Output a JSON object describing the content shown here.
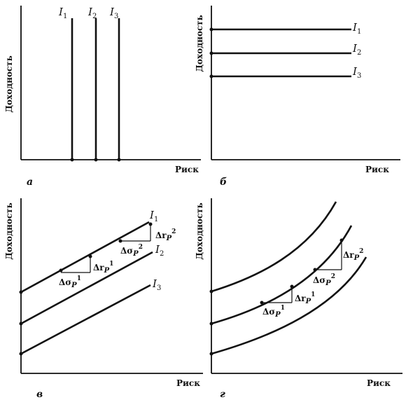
{
  "panels": [
    {
      "label": "а",
      "ylabel": "Доходность",
      "xlabel": "Риск",
      "curves": [
        {
          "name": "I",
          "sub": "1"
        },
        {
          "name": "I",
          "sub": "2"
        },
        {
          "name": "I",
          "sub": "3"
        }
      ]
    },
    {
      "label": "б",
      "ylabel": "Доходность",
      "xlabel": "Риск",
      "curves": [
        {
          "name": "I",
          "sub": "1"
        },
        {
          "name": "I",
          "sub": "2"
        },
        {
          "name": "I",
          "sub": "3"
        }
      ]
    },
    {
      "label": "в",
      "ylabel": "Доходность",
      "xlabel": "Риск",
      "curves": [
        {
          "name": "I",
          "sub": "1"
        },
        {
          "name": "I",
          "sub": "2"
        },
        {
          "name": "I",
          "sub": "3"
        }
      ],
      "deltas": [
        {
          "dsigma": "Δσ",
          "dsigma_sub": "P",
          "dsigma_sup": "1",
          "dr": "Δr",
          "dr_sub": "P",
          "dr_sup": "1"
        },
        {
          "dsigma": "Δσ",
          "dsigma_sub": "P",
          "dsigma_sup": "2",
          "dr": "Δr",
          "dr_sub": "P",
          "dr_sup": "2"
        }
      ]
    },
    {
      "label": "г",
      "ylabel": "Доходность",
      "xlabel": "Риск",
      "deltas": [
        {
          "dsigma": "Δσ",
          "dsigma_sub": "P",
          "dsigma_sup": "1",
          "dr": "Δr",
          "dr_sub": "P",
          "dr_sup": "1"
        },
        {
          "dsigma": "Δσ",
          "dsigma_sub": "P",
          "dsigma_sup": "2",
          "dr": "Δr",
          "dr_sub": "P",
          "dr_sup": "2"
        }
      ]
    }
  ]
}
